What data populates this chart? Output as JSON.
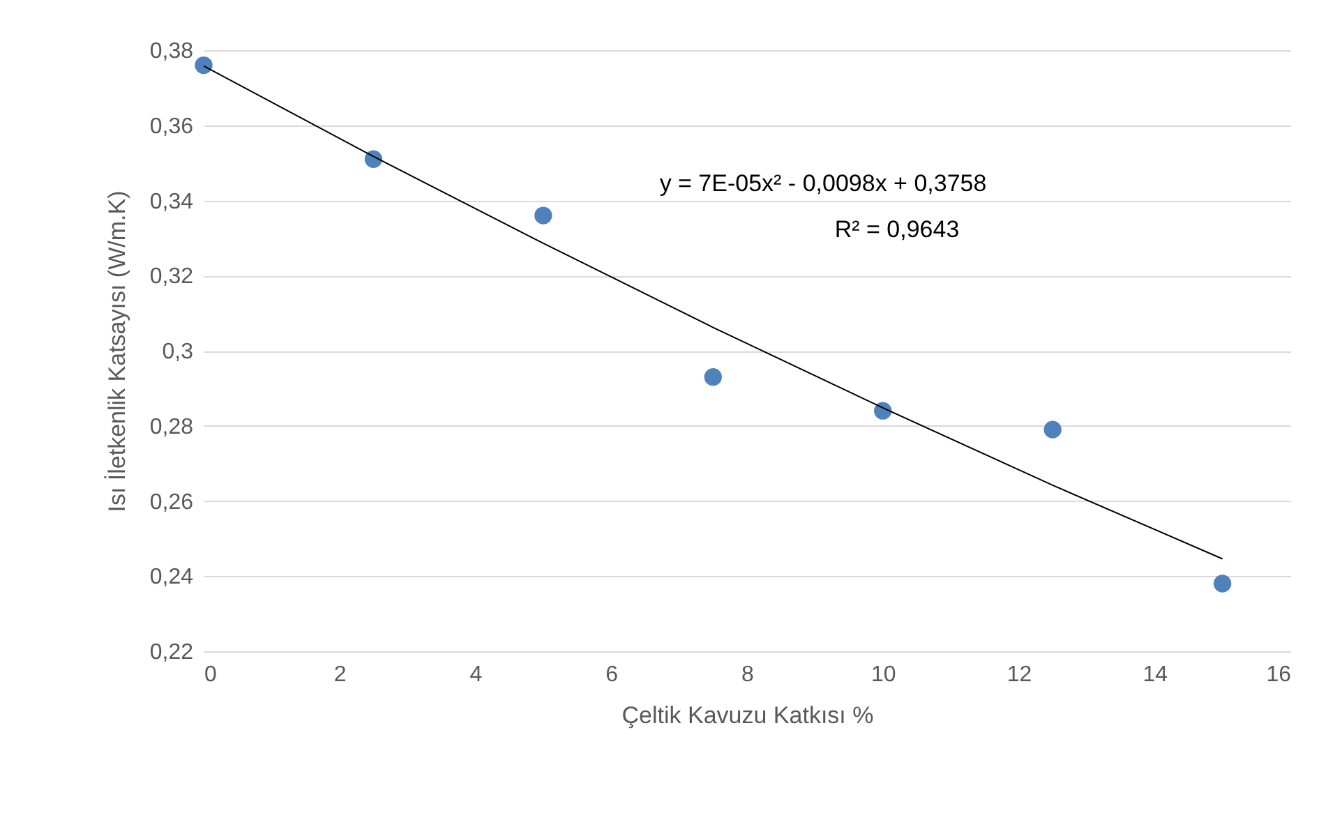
{
  "chart_data": {
    "type": "scatter",
    "xlabel": "Çeltik Kavuzu Katkısı %",
    "ylabel": "Isı İletkenlik Katsayısı (W/m.K)",
    "x": [
      0,
      2.5,
      5,
      7.5,
      10,
      12.5,
      15
    ],
    "series": [
      {
        "color": "#4f81bd",
        "values": [
          0.376,
          0.351,
          0.336,
          0.293,
          0.284,
          0.279,
          0.238
        ]
      },
      {
        "type": "line",
        "marker": "none",
        "color": "#000000",
        "x": [
          0,
          2.5,
          5,
          7.5,
          10,
          12.5,
          15
        ],
        "values": [
          0.3758,
          0.3517,
          0.3286,
          0.3062,
          0.2848,
          0.2642,
          0.2446
        ]
      }
    ],
    "xlim": [
      0,
      16
    ],
    "xticks": [
      0,
      2,
      4,
      6,
      8,
      10,
      12,
      14,
      16
    ],
    "ylim": [
      0.22,
      0.38
    ],
    "yticks": [
      {
        "value": 0.22,
        "label": "0,22"
      },
      {
        "value": 0.24,
        "label": "0,24"
      },
      {
        "value": 0.26,
        "label": "0,26"
      },
      {
        "value": 0.28,
        "label": "0,28"
      },
      {
        "value": 0.3,
        "label": "0,3"
      },
      {
        "value": 0.32,
        "label": "0,32"
      },
      {
        "value": 0.34,
        "label": "0,34"
      },
      {
        "value": 0.36,
        "label": "0,36"
      },
      {
        "value": 0.38,
        "label": "0,38"
      }
    ],
    "grid": "y",
    "marker": "circle",
    "annotations": [
      "y = 7E-05x² - 0,0098x + 0,3758",
      "R² = 0,9643"
    ]
  }
}
